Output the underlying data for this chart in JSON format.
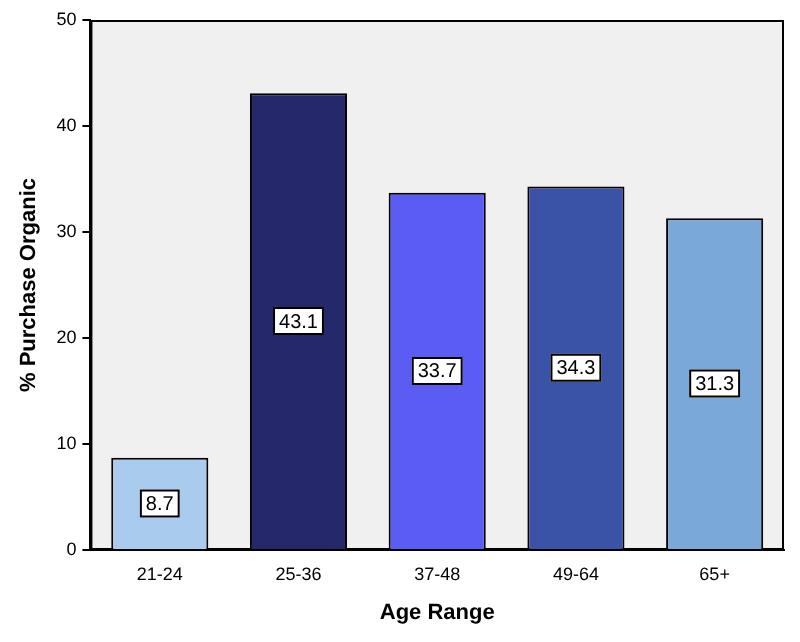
{
  "chart_data": {
    "type": "bar",
    "xlabel": "Age Range",
    "ylabel": "% Purchase Organic",
    "categories": [
      "21-24",
      "25-36",
      "37-48",
      "49-64",
      "65+"
    ],
    "values": [
      8.7,
      43.1,
      33.7,
      34.3,
      31.3
    ],
    "colors": [
      "#a9cbee",
      "#25286b",
      "#5a5cf4",
      "#3b53a6",
      "#7aa8d9"
    ],
    "ylim": [
      0,
      50
    ],
    "yticks": [
      0,
      10,
      20,
      30,
      40,
      50
    ],
    "data_labels": true,
    "grid": false,
    "legend": false
  }
}
